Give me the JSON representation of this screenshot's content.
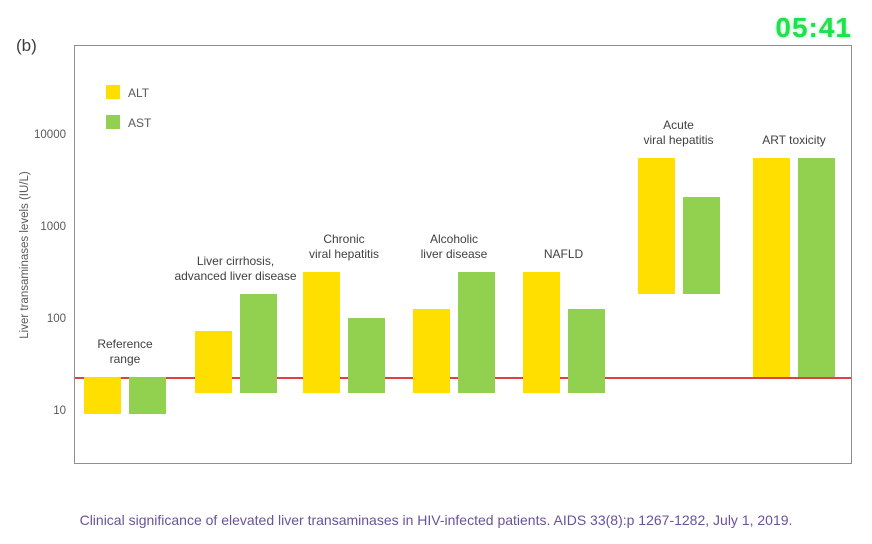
{
  "page": {
    "panel_label": "(b)",
    "timer": "05:41",
    "timer_color": "#1ee24b",
    "caption": "Clinical significance of elevated liver transaminases in HIV-infected patients. AIDS 33(8):p 1267-1282, July 1, 2019.",
    "caption_color": "#6a529b"
  },
  "chart_data": {
    "type": "bar",
    "subtype": "floating_range_bars",
    "title": "",
    "xlabel": "",
    "ylabel": "Liver transaminases levels (IU/L)",
    "yscale": "log",
    "yticks": [
      10,
      100,
      1000,
      10000
    ],
    "ylim": [
      3,
      100000
    ],
    "grid": false,
    "legend_position": "top-left-inside",
    "units": "IU/L",
    "reference_line": {
      "value": 25,
      "color": "#e04040"
    },
    "categories": [
      {
        "label_lines": [
          "Reference",
          "range"
        ]
      },
      {
        "label_lines": [
          "Liver cirrhosis,",
          "advanced liver disease"
        ]
      },
      {
        "label_lines": [
          "Chronic",
          "viral hepatitis"
        ]
      },
      {
        "label_lines": [
          "Alcoholic",
          "liver disease"
        ]
      },
      {
        "label_lines": [
          "NAFLD"
        ]
      },
      {
        "label_lines": [
          "Acute",
          "viral hepatitis"
        ]
      },
      {
        "label_lines": [
          "ART toxicity"
        ]
      }
    ],
    "series": [
      {
        "name": "ALT",
        "color": "#ffdf00",
        "ranges_iu_l": [
          [
            10,
            25
          ],
          [
            17,
            80
          ],
          [
            17,
            350
          ],
          [
            17,
            140
          ],
          [
            17,
            350
          ],
          [
            200,
            6000
          ],
          [
            25,
            6000
          ]
        ]
      },
      {
        "name": "AST",
        "color": "#92d050",
        "ranges_iu_l": [
          [
            10,
            25
          ],
          [
            17,
            200
          ],
          [
            17,
            110
          ],
          [
            17,
            350
          ],
          [
            17,
            140
          ],
          [
            200,
            2300
          ],
          [
            25,
            6000
          ]
        ]
      }
    ]
  }
}
